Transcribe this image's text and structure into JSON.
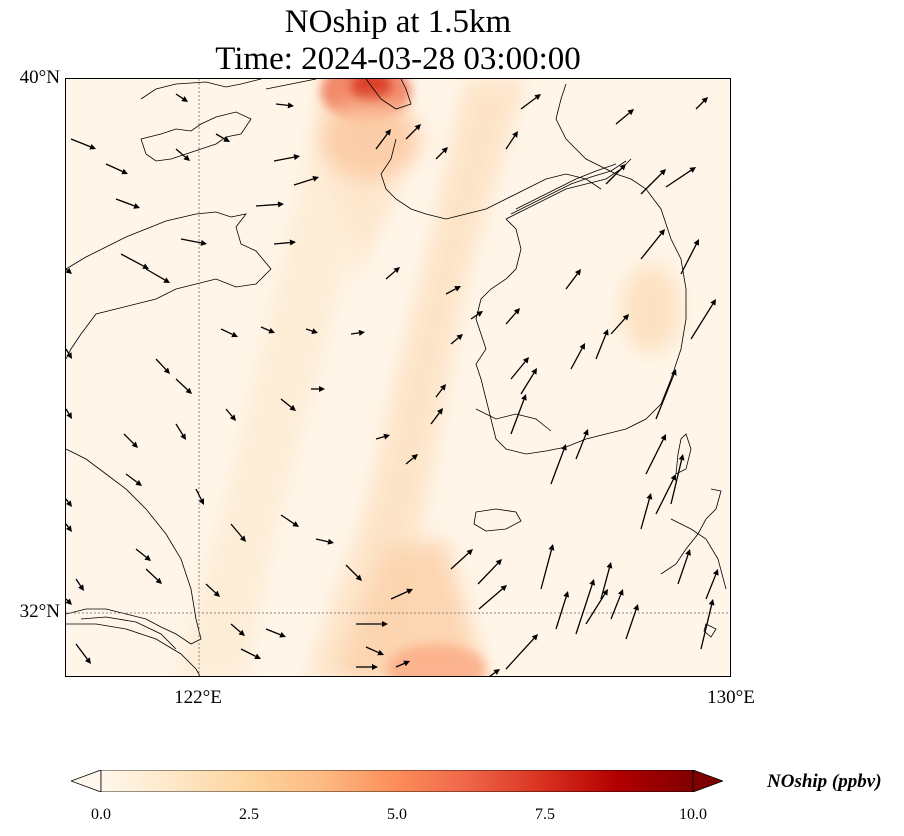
{
  "figure": {
    "title_line1": "NOship at 1.5km",
    "title_line2": "Time: 2024-03-28 03:00:00"
  },
  "map": {
    "lon_range": [
      120.0,
      130.0
    ],
    "lat_range": [
      31.0,
      40.0
    ],
    "lat_labels": [
      "40°N",
      "32°N"
    ],
    "lon_labels": [
      "122°E",
      "130°E"
    ],
    "gridlines": "dotted at 122°E and 32°N",
    "background_color": "#fff6e9",
    "coastline_color": "#000000",
    "field": "NOship concentration, higher values along ship lanes (Bohai Sea to East China Sea) and eastern Korea interior",
    "wind_arrows": "wind vectors shown as black arrows"
  },
  "colorbar": {
    "label": "NOship (ppbv)",
    "ticks": [
      "0.0",
      "2.5",
      "5.0",
      "7.5",
      "10.0"
    ],
    "min": 0.0,
    "max": 10.0,
    "colormap": "OrRd",
    "colors": [
      "#fff7ec",
      "#fee8c8",
      "#fdd49e",
      "#fdbb84",
      "#fc8d59",
      "#ef6548",
      "#d7301f",
      "#b30000",
      "#7f0000"
    ],
    "extend": "both"
  }
}
